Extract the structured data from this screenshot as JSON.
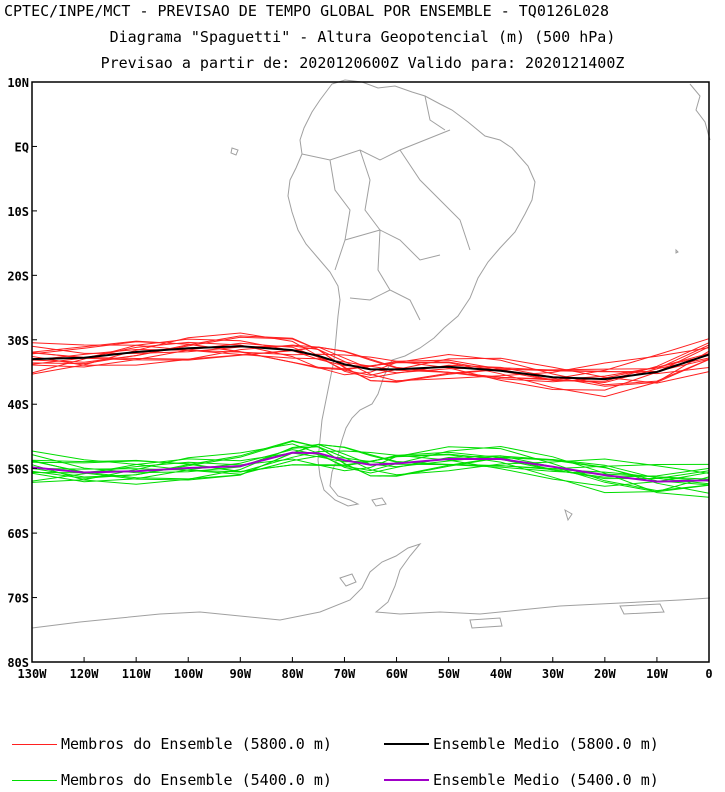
{
  "title": {
    "line1": "CPTEC/INPE/MCT - PREVISAO DE TEMPO GLOBAL POR ENSEMBLE - TQ0126L028",
    "line2": "Diagrama \"Spaguetti\" - Altura Geopotencial (m) (500 hPa)",
    "line3": "Previsao a partir de: 2020120600Z  Valido para: 2020121400Z"
  },
  "axes": {
    "lat_labels": [
      "10N",
      "EQ",
      "10S",
      "20S",
      "30S",
      "40S",
      "50S",
      "60S",
      "70S",
      "80S"
    ],
    "lat_values": [
      10,
      0,
      -10,
      -20,
      -30,
      -40,
      -50,
      -60,
      -70,
      -80
    ],
    "lon_labels": [
      "130W",
      "120W",
      "110W",
      "100W",
      "90W",
      "80W",
      "70W",
      "60W",
      "50W",
      "40W",
      "30W",
      "20W",
      "10W",
      "0"
    ],
    "lon_values": [
      -130,
      -120,
      -110,
      -100,
      -90,
      -80,
      -70,
      -60,
      -50,
      -40,
      -30,
      -20,
      -10,
      0
    ],
    "lon_range": [
      -130,
      0
    ],
    "lat_range": [
      -80,
      10
    ]
  },
  "colors": {
    "coast": "#a0a0a0",
    "member_5800": "#ff2020",
    "mean_5800": "#000000",
    "member_5400": "#00dd00",
    "mean_5400": "#a000c8"
  },
  "legend": [
    {
      "label": "Membros do Ensemble (5800.0 m)",
      "color": "#ff2020"
    },
    {
      "label": "Ensemble Medio (5800.0 m)",
      "color": "#000000"
    },
    {
      "label": "Membros do Ensemble (5400.0 m)",
      "color": "#00dd00"
    },
    {
      "label": "Ensemble Medio (5400.0 m)",
      "color": "#a000c8"
    }
  ],
  "chart_data": {
    "type": "line",
    "x": [
      -130,
      -120,
      -110,
      -100,
      -90,
      -80,
      -75,
      -70,
      -65,
      -60,
      -50,
      -40,
      -30,
      -20,
      -10,
      0
    ],
    "series": [
      {
        "name": "Ensemble Medio (5800.0 m)",
        "values": [
          -33.0,
          -32.8,
          -31.9,
          -31.3,
          -31.0,
          -31.6,
          -32.5,
          -33.8,
          -34.6,
          -34.6,
          -34.2,
          -34.8,
          -35.8,
          -36.1,
          -35.0,
          -32.3
        ]
      },
      {
        "name": "Ensemble Medio (5400.0 m)",
        "values": [
          -49.8,
          -50.6,
          -50.4,
          -49.9,
          -49.6,
          -47.5,
          -47.6,
          -48.7,
          -49.4,
          -49.2,
          -48.5,
          -48.5,
          -49.7,
          -51.0,
          -52.0,
          -51.8
        ]
      }
    ]
  }
}
